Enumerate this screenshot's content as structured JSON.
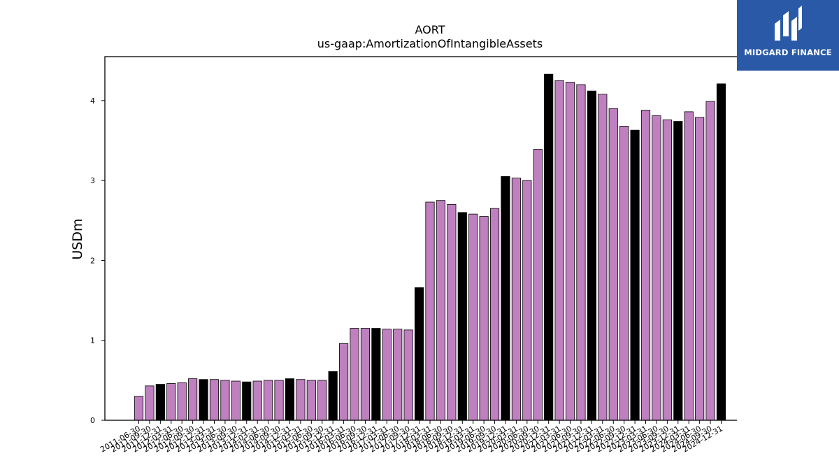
{
  "chart_data": {
    "type": "bar",
    "title": "AORT",
    "subtitle": "us-gaap:AmortizationOfIntangibleAssets",
    "ylabel": "USDm",
    "xlabel": "",
    "ylim": [
      0,
      4.55
    ],
    "yticks": [
      0,
      1,
      2,
      3,
      4
    ],
    "grid": false,
    "colors": {
      "bar_default": "#bf80bf",
      "bar_highlight": "#000000",
      "edge": "#000000"
    },
    "categories": [
      "2011-06-30",
      "2011-09-30",
      "2011-12-31",
      "2012-03-31",
      "2012-06-30",
      "2012-09-30",
      "2012-12-31",
      "2013-03-31",
      "2013-06-30",
      "2013-09-30",
      "2013-12-31",
      "2014-03-31",
      "2014-06-30",
      "2014-09-30",
      "2014-12-31",
      "2015-03-31",
      "2015-06-30",
      "2015-09-30",
      "2015-12-31",
      "2016-03-31",
      "2016-06-30",
      "2016-09-30",
      "2016-12-31",
      "2017-03-31",
      "2017-06-30",
      "2017-09-30",
      "2017-12-31",
      "2018-03-31",
      "2018-06-30",
      "2018-09-30",
      "2018-12-31",
      "2019-03-31",
      "2019-06-30",
      "2019-09-30",
      "2019-12-31",
      "2020-03-31",
      "2020-06-30",
      "2020-09-30",
      "2020-12-31",
      "2021-03-31",
      "2021-06-30",
      "2021-09-30",
      "2021-12-31",
      "2022-03-31",
      "2022-06-30",
      "2022-09-30",
      "2022-12-31",
      "2023-03-31",
      "2023-06-30",
      "2023-09-30",
      "2023-12-31",
      "2024-03-31",
      "2024-06-30",
      "2024-09-30",
      "2024-12-31"
    ],
    "values": [
      0.3,
      0.43,
      0.45,
      0.46,
      0.47,
      0.52,
      0.51,
      0.51,
      0.5,
      0.49,
      0.48,
      0.49,
      0.5,
      0.5,
      0.52,
      0.51,
      0.5,
      0.5,
      0.61,
      0.96,
      1.15,
      1.15,
      1.15,
      1.14,
      1.14,
      1.13,
      1.66,
      2.73,
      2.75,
      2.7,
      2.6,
      2.58,
      2.55,
      2.65,
      3.05,
      3.03,
      3.0,
      3.39,
      4.33,
      4.25,
      4.23,
      4.2,
      4.12,
      4.08,
      3.9,
      3.68,
      3.63,
      3.88,
      3.81,
      3.76,
      3.74,
      3.86,
      3.79,
      3.99,
      4.21
    ],
    "highlight_indices": [
      2,
      6,
      10,
      14,
      18,
      22,
      26,
      30,
      34,
      38,
      42,
      46,
      50,
      54
    ]
  },
  "logo": {
    "text": "MIDGARD FINANCE",
    "icon": "midgard-logo-icon"
  }
}
